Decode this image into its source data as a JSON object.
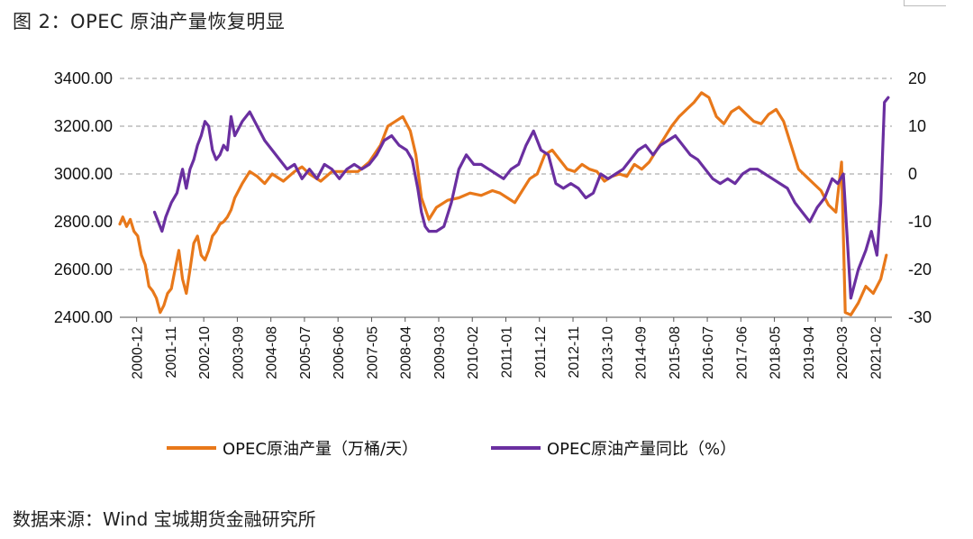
{
  "title": "图 2：OPEC 原油产量恢复明显",
  "source": "数据来源：Wind  宝城期货金融研究所",
  "chart_data": {
    "type": "line",
    "title": "图 2：OPEC 原油产量恢复明显",
    "xlabel": "",
    "ylabel_left": "",
    "ylabel_right": "",
    "ylim_left": [
      2400,
      3400
    ],
    "ylim_right": [
      -30,
      20
    ],
    "left_ticks": [
      "3400.00",
      "3200.00",
      "3000.00",
      "2800.00",
      "2600.00",
      "2400.00"
    ],
    "right_ticks": [
      "20",
      "10",
      "0",
      "-10",
      "-20",
      "-30"
    ],
    "x_ticks": [
      "2000-12",
      "2001-11",
      "2002-10",
      "2003-09",
      "2004-08",
      "2005-07",
      "2006-06",
      "2007-05",
      "2008-04",
      "2009-03",
      "2010-02",
      "2011-01",
      "2011-12",
      "2012-11",
      "2013-10",
      "2014-09",
      "2015-08",
      "2016-07",
      "2017-06",
      "2018-05",
      "2019-04",
      "2020-03",
      "2021-02"
    ],
    "grid": "horizontal dashed",
    "legend_position": "bottom",
    "colors": {
      "production": "#E8781A",
      "yoy": "#6A2FA0"
    },
    "series": [
      {
        "name": "OPEC原油产量（万桶/天）",
        "axis": "left",
        "x": [
          2000.92,
          2001.0,
          2001.1,
          2001.2,
          2001.3,
          2001.4,
          2001.5,
          2001.6,
          2001.7,
          2001.8,
          2001.9,
          2002.0,
          2002.1,
          2002.2,
          2002.3,
          2002.4,
          2002.5,
          2002.6,
          2002.7,
          2002.8,
          2002.9,
          2003.0,
          2003.1,
          2003.2,
          2003.3,
          2003.4,
          2003.5,
          2003.6,
          2003.7,
          2003.8,
          2003.9,
          2004.0,
          2004.2,
          2004.4,
          2004.6,
          2004.8,
          2005.0,
          2005.3,
          2005.6,
          2005.8,
          2006.0,
          2006.3,
          2006.6,
          2006.8,
          2007.0,
          2007.3,
          2007.6,
          2007.9,
          2008.1,
          2008.3,
          2008.5,
          2008.7,
          2008.85,
          2009.0,
          2009.2,
          2009.4,
          2009.7,
          2010.0,
          2010.3,
          2010.6,
          2010.9,
          2011.1,
          2011.3,
          2011.5,
          2011.7,
          2011.9,
          2012.1,
          2012.3,
          2012.5,
          2012.7,
          2012.9,
          2013.1,
          2013.3,
          2013.5,
          2013.7,
          2013.9,
          2014.1,
          2014.3,
          2014.5,
          2014.7,
          2014.9,
          2015.1,
          2015.3,
          2015.5,
          2015.7,
          2015.9,
          2016.1,
          2016.3,
          2016.5,
          2016.7,
          2016.9,
          2017.1,
          2017.3,
          2017.5,
          2017.7,
          2017.9,
          2018.1,
          2018.3,
          2018.5,
          2018.7,
          2018.9,
          2019.1,
          2019.3,
          2019.5,
          2019.7,
          2019.9,
          2020.1,
          2020.25,
          2020.35,
          2020.5,
          2020.7,
          2020.9,
          2021.1,
          2021.3,
          2021.45
        ],
        "values": [
          2790,
          2820,
          2780,
          2810,
          2760,
          2740,
          2660,
          2620,
          2530,
          2510,
          2480,
          2420,
          2450,
          2500,
          2520,
          2600,
          2680,
          2560,
          2500,
          2600,
          2710,
          2740,
          2660,
          2640,
          2680,
          2740,
          2760,
          2790,
          2800,
          2820,
          2850,
          2900,
          2960,
          3010,
          2990,
          2960,
          3000,
          2970,
          3010,
          3030,
          3000,
          2970,
          3010,
          3010,
          3010,
          3010,
          3050,
          3120,
          3200,
          3220,
          3240,
          3180,
          3080,
          2900,
          2810,
          2860,
          2890,
          2900,
          2920,
          2910,
          2930,
          2920,
          2900,
          2880,
          2930,
          2980,
          3000,
          3080,
          3100,
          3060,
          3020,
          3010,
          3040,
          3020,
          3010,
          2970,
          2990,
          3000,
          2990,
          3040,
          3020,
          3050,
          3100,
          3150,
          3200,
          3240,
          3270,
          3300,
          3340,
          3320,
          3240,
          3210,
          3260,
          3280,
          3250,
          3220,
          3210,
          3250,
          3270,
          3220,
          3120,
          3020,
          2990,
          2960,
          2930,
          2870,
          2840,
          3050,
          2420,
          2410,
          2460,
          2530,
          2500,
          2560,
          2660
        ]
      },
      {
        "name": "OPEC原油产量同比（%）",
        "axis": "right",
        "x": [
          2001.85,
          2001.95,
          2002.05,
          2002.15,
          2002.3,
          2002.45,
          2002.6,
          2002.7,
          2002.8,
          2002.9,
          2003.0,
          2003.1,
          2003.2,
          2003.3,
          2003.4,
          2003.5,
          2003.6,
          2003.7,
          2003.8,
          2003.9,
          2004.0,
          2004.2,
          2004.4,
          2004.6,
          2004.8,
          2005.0,
          2005.2,
          2005.4,
          2005.6,
          2005.8,
          2006.0,
          2006.2,
          2006.4,
          2006.6,
          2006.8,
          2007.0,
          2007.2,
          2007.4,
          2007.6,
          2007.8,
          2008.0,
          2008.2,
          2008.4,
          2008.6,
          2008.75,
          2008.9,
          2009.0,
          2009.1,
          2009.2,
          2009.4,
          2009.6,
          2009.8,
          2010.0,
          2010.2,
          2010.4,
          2010.6,
          2010.8,
          2011.0,
          2011.2,
          2011.4,
          2011.6,
          2011.8,
          2012.0,
          2012.2,
          2012.4,
          2012.6,
          2012.8,
          2013.0,
          2013.2,
          2013.4,
          2013.6,
          2013.8,
          2014.0,
          2014.2,
          2014.4,
          2014.6,
          2014.8,
          2015.0,
          2015.2,
          2015.4,
          2015.6,
          2015.8,
          2016.0,
          2016.2,
          2016.4,
          2016.6,
          2016.8,
          2017.0,
          2017.2,
          2017.4,
          2017.6,
          2017.8,
          2018.0,
          2018.2,
          2018.4,
          2018.6,
          2018.8,
          2019.0,
          2019.2,
          2019.4,
          2019.6,
          2019.8,
          2020.0,
          2020.15,
          2020.3,
          2020.5,
          2020.7,
          2020.9,
          2021.05,
          2021.2,
          2021.3,
          2021.4,
          2021.5
        ],
        "values": [
          -8,
          -10,
          -12,
          -9,
          -6,
          -4,
          1,
          -3,
          1,
          3,
          6,
          8,
          11,
          10,
          5,
          3,
          4,
          6,
          5,
          12,
          8,
          11,
          13,
          10,
          7,
          5,
          3,
          1,
          2,
          -1,
          1,
          -1,
          2,
          1,
          -1,
          1,
          2,
          1,
          2,
          4,
          7,
          8,
          6,
          5,
          3,
          -3,
          -8,
          -11,
          -12,
          -12,
          -11,
          -6,
          1,
          4,
          2,
          2,
          1,
          0,
          -1,
          1,
          2,
          6,
          9,
          5,
          4,
          -2,
          -3,
          -2,
          -3,
          -5,
          -4,
          0,
          -1,
          0,
          1,
          3,
          5,
          6,
          4,
          6,
          7,
          8,
          6,
          4,
          3,
          1,
          -1,
          -2,
          -1,
          -2,
          0,
          1,
          1,
          0,
          -1,
          -2,
          -3,
          -6,
          -8,
          -10,
          -7,
          -5,
          -1,
          -2,
          0,
          -26,
          -20,
          -16,
          -12,
          -17,
          -6,
          15,
          16
        ]
      }
    ]
  }
}
